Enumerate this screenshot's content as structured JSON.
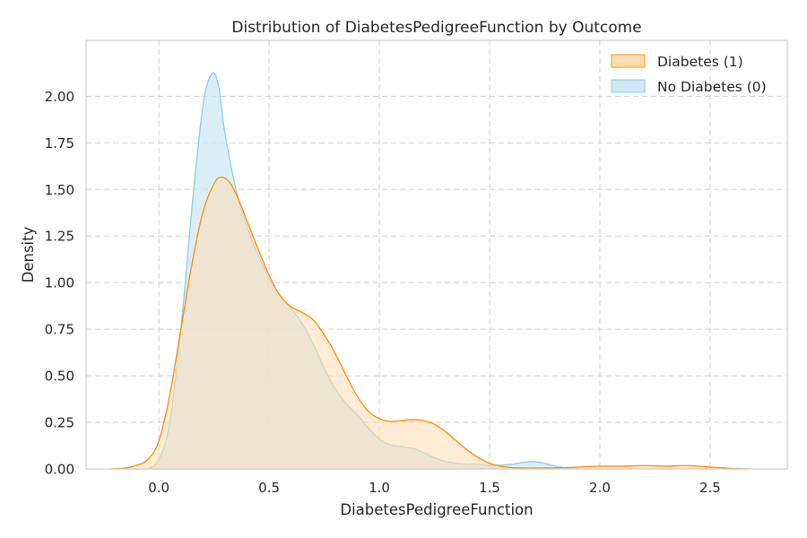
{
  "chart_data": {
    "type": "area",
    "title": "Distribution of DiabetesPedigreeFunction by Outcome",
    "xlabel": "DiabetesPedigreeFunction",
    "ylabel": "Density",
    "xlim": [
      -0.33,
      2.85
    ],
    "ylim": [
      0,
      2.3
    ],
    "xticks": [
      0.0,
      0.5,
      1.0,
      1.5,
      2.0,
      2.5
    ],
    "xtick_labels": [
      "0.0",
      "0.5",
      "1.0",
      "1.5",
      "2.0",
      "2.5"
    ],
    "yticks": [
      0,
      0.25,
      0.5,
      0.75,
      1.0,
      1.25,
      1.5,
      1.75,
      2.0
    ],
    "ytick_labels": [
      "0.00",
      "0.25",
      "0.50",
      "0.75",
      "1.00",
      "1.25",
      "1.50",
      "1.75",
      "2.00"
    ],
    "grid": true,
    "legend_position": "top-right",
    "series": [
      {
        "name": "Diabetes (1)",
        "color": "#ff8c00",
        "fill": "#ffdcb0",
        "points": [
          [
            -0.22,
            0.0
          ],
          [
            -0.15,
            0.005
          ],
          [
            -0.1,
            0.02
          ],
          [
            -0.05,
            0.05
          ],
          [
            0.0,
            0.15
          ],
          [
            0.05,
            0.4
          ],
          [
            0.1,
            0.75
          ],
          [
            0.15,
            1.1
          ],
          [
            0.2,
            1.38
          ],
          [
            0.25,
            1.53
          ],
          [
            0.28,
            1.565
          ],
          [
            0.32,
            1.54
          ],
          [
            0.36,
            1.45
          ],
          [
            0.4,
            1.33
          ],
          [
            0.45,
            1.18
          ],
          [
            0.5,
            1.04
          ],
          [
            0.55,
            0.93
          ],
          [
            0.6,
            0.87
          ],
          [
            0.65,
            0.84
          ],
          [
            0.7,
            0.8
          ],
          [
            0.75,
            0.72
          ],
          [
            0.8,
            0.62
          ],
          [
            0.85,
            0.5
          ],
          [
            0.9,
            0.39
          ],
          [
            0.95,
            0.31
          ],
          [
            1.0,
            0.27
          ],
          [
            1.05,
            0.255
          ],
          [
            1.1,
            0.26
          ],
          [
            1.15,
            0.265
          ],
          [
            1.2,
            0.26
          ],
          [
            1.25,
            0.24
          ],
          [
            1.3,
            0.2
          ],
          [
            1.35,
            0.15
          ],
          [
            1.4,
            0.1
          ],
          [
            1.45,
            0.06
          ],
          [
            1.5,
            0.03
          ],
          [
            1.55,
            0.015
          ],
          [
            1.6,
            0.007
          ],
          [
            1.65,
            0.005
          ],
          [
            1.7,
            0.005
          ],
          [
            1.8,
            0.006
          ],
          [
            1.9,
            0.01
          ],
          [
            2.0,
            0.015
          ],
          [
            2.1,
            0.015
          ],
          [
            2.2,
            0.018
          ],
          [
            2.3,
            0.015
          ],
          [
            2.4,
            0.018
          ],
          [
            2.5,
            0.01
          ],
          [
            2.6,
            0.003
          ],
          [
            2.68,
            0.0
          ]
        ]
      },
      {
        "name": "No Diabetes (0)",
        "color": "#87ceeb",
        "fill": "#cfe8f5",
        "points": [
          [
            -0.05,
            0.0
          ],
          [
            0.0,
            0.05
          ],
          [
            0.05,
            0.25
          ],
          [
            0.1,
            0.75
          ],
          [
            0.15,
            1.4
          ],
          [
            0.2,
            1.95
          ],
          [
            0.24,
            2.12
          ],
          [
            0.27,
            2.06
          ],
          [
            0.3,
            1.8
          ],
          [
            0.35,
            1.5
          ],
          [
            0.4,
            1.3
          ],
          [
            0.45,
            1.15
          ],
          [
            0.5,
            1.02
          ],
          [
            0.55,
            0.93
          ],
          [
            0.6,
            0.86
          ],
          [
            0.65,
            0.78
          ],
          [
            0.7,
            0.67
          ],
          [
            0.75,
            0.54
          ],
          [
            0.8,
            0.43
          ],
          [
            0.85,
            0.35
          ],
          [
            0.9,
            0.29
          ],
          [
            0.95,
            0.22
          ],
          [
            1.0,
            0.16
          ],
          [
            1.05,
            0.13
          ],
          [
            1.1,
            0.12
          ],
          [
            1.15,
            0.11
          ],
          [
            1.2,
            0.09
          ],
          [
            1.25,
            0.06
          ],
          [
            1.3,
            0.04
          ],
          [
            1.35,
            0.03
          ],
          [
            1.4,
            0.025
          ],
          [
            1.45,
            0.025
          ],
          [
            1.5,
            0.02
          ],
          [
            1.55,
            0.02
          ],
          [
            1.6,
            0.025
          ],
          [
            1.65,
            0.035
          ],
          [
            1.7,
            0.04
          ],
          [
            1.75,
            0.03
          ],
          [
            1.8,
            0.015
          ],
          [
            1.85,
            0.005
          ],
          [
            1.9,
            0.0
          ]
        ]
      }
    ]
  }
}
